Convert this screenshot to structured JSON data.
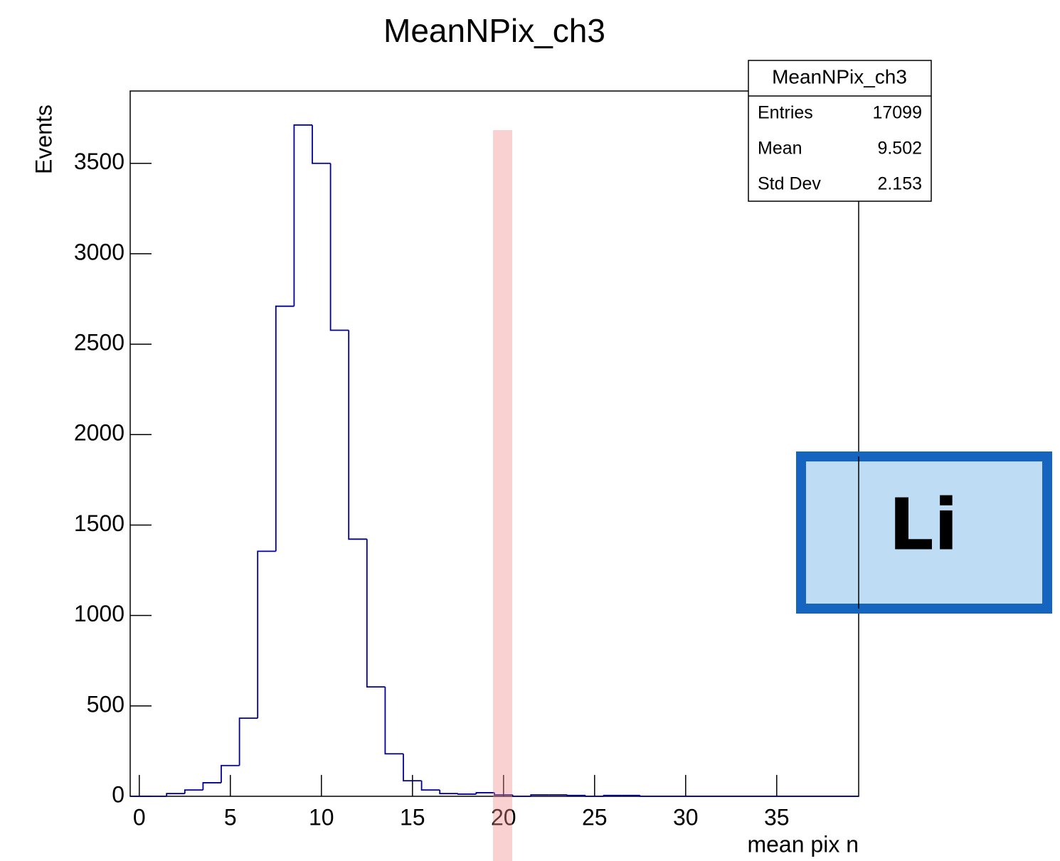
{
  "chart_data": {
    "type": "histogram",
    "title": "MeanNPix_ch3",
    "x_label": "mean pix n",
    "y_label": "Events",
    "bins": [
      -0.5,
      0.5,
      1.5,
      2.5,
      3.5,
      4.5,
      5.5,
      6.5,
      7.5,
      8.5,
      9.5,
      10.5,
      11.5,
      12.5,
      13.5,
      14.5,
      15.5,
      16.5,
      17.5,
      18.5,
      19.5,
      20.5,
      21.5,
      22.5,
      23.5,
      24.5,
      25.5,
      26.5,
      27.5,
      28.5,
      29.5,
      30.5,
      31.5,
      32.5,
      33.5,
      34.5,
      35.5,
      36.5,
      37.5,
      38.5,
      39.5
    ],
    "values": [
      0,
      0,
      15,
      35,
      75,
      170,
      432,
      1355,
      2710,
      3712,
      3500,
      2577,
      1422,
      605,
      235,
      86,
      35,
      15,
      12,
      20,
      8,
      0,
      8,
      8,
      5,
      0,
      5,
      5,
      0,
      0,
      0,
      0,
      0,
      0,
      0,
      0,
      0,
      0,
      0,
      0
    ],
    "color": "#000099",
    "xlim": [
      -0.5,
      39.5
    ],
    "xticks": [
      0,
      5,
      10,
      15,
      20,
      25,
      30,
      35
    ],
    "ylim": [
      0,
      3900
    ],
    "yticks": [
      0,
      500,
      1000,
      1500,
      2000,
      2500,
      3000,
      3500
    ],
    "stats": {
      "title": "MeanNPix_ch3",
      "rows": [
        [
          "Entries",
          17099
        ],
        [
          "Mean",
          9.502
        ],
        [
          "Std Dev",
          2.153
        ]
      ]
    },
    "annotation": "Li"
  }
}
